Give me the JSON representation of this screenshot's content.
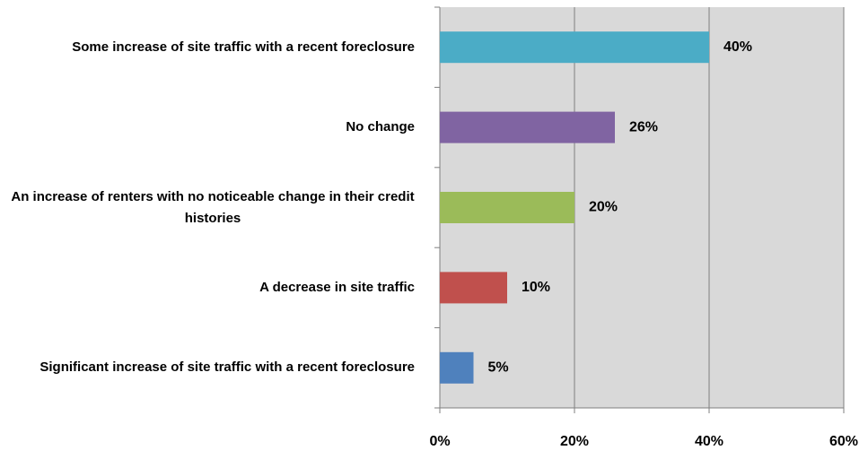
{
  "chart_data": {
    "type": "bar",
    "orientation": "horizontal",
    "categories": [
      "Some increase of site traffic with a recent foreclosure",
      "No change",
      "An increase of renters with no noticeable change in their credit histories",
      "A decrease in site traffic",
      "Significant increase of site traffic with a recent foreclosure"
    ],
    "values": [
      40,
      26,
      20,
      10,
      5
    ],
    "value_labels": [
      "40%",
      "26%",
      "20%",
      "10%",
      "5%"
    ],
    "colors": [
      "#4bacc6",
      "#8064a2",
      "#9bbb59",
      "#c0504d",
      "#4f81bd"
    ],
    "xlim": [
      0,
      60
    ],
    "xticks": [
      {
        "value": 0,
        "label": "0%"
      },
      {
        "value": 20,
        "label": "20%"
      },
      {
        "value": 40,
        "label": "40%"
      },
      {
        "value": 60,
        "label": "60%"
      }
    ],
    "grid": true
  }
}
